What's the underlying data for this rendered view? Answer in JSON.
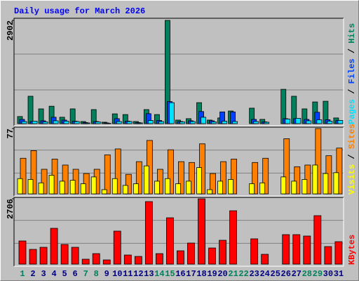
{
  "legend_separator": "/",
  "chart_data": [
    {
      "type": "bar",
      "title": "Daily usage for March 2026",
      "ylim": [
        0,
        2902
      ],
      "yticks": [
        2902
      ],
      "series": [
        {
          "name": "Hits",
          "color": "#00805c",
          "values": [
            200,
            770,
            415,
            490,
            180,
            415,
            60,
            395,
            40,
            275,
            255,
            60,
            395,
            255,
            2902,
            100,
            140,
            590,
            100,
            160,
            355,
            0,
            435,
            120,
            0,
            965,
            770,
            415,
            610,
            630,
            160
          ]
        },
        {
          "name": "Files",
          "color": "#0040ff",
          "values": [
            120,
            60,
            80,
            180,
            100,
            70,
            30,
            60,
            20,
            140,
            70,
            30,
            280,
            90,
            620,
            60,
            80,
            340,
            80,
            330,
            330,
            0,
            120,
            50,
            0,
            140,
            140,
            120,
            320,
            110,
            90
          ]
        },
        {
          "name": "Pages",
          "color": "#00e0ff",
          "values": [
            60,
            70,
            50,
            80,
            70,
            60,
            20,
            50,
            10,
            60,
            60,
            20,
            90,
            60,
            590,
            50,
            60,
            180,
            50,
            70,
            60,
            0,
            60,
            40,
            0,
            130,
            150,
            80,
            110,
            70,
            90
          ]
        }
      ]
    },
    {
      "type": "bar",
      "ylim": [
        0,
        77
      ],
      "yticks": [
        77
      ],
      "series": [
        {
          "name": "Sites",
          "color": "#ff8000",
          "values": [
            42,
            51,
            29,
            41,
            34,
            29,
            24,
            29,
            46,
            53,
            23,
            38,
            63,
            29,
            52,
            38,
            37,
            59,
            24,
            38,
            41,
            0,
            37,
            42,
            0,
            65,
            32,
            34,
            77,
            45,
            54
          ]
        },
        {
          "name": "Visits",
          "color": "#ffff00",
          "values": [
            18,
            17,
            13,
            22,
            15,
            16,
            12,
            20,
            5,
            18,
            10,
            12,
            33,
            15,
            18,
            12,
            15,
            31,
            5,
            15,
            17,
            0,
            12,
            13,
            0,
            20,
            15,
            17,
            34,
            24,
            25
          ]
        }
      ]
    },
    {
      "type": "bar",
      "categories": [
        "1",
        "2",
        "3",
        "4",
        "5",
        "6",
        "7",
        "8",
        "9",
        "10",
        "11",
        "12",
        "13",
        "14",
        "15",
        "16",
        "17",
        "18",
        "19",
        "20",
        "21",
        "22",
        "23",
        "24",
        "25",
        "26",
        "27",
        "28",
        "29",
        "30",
        "31"
      ],
      "category_colors": [
        "#00805c",
        "#000080",
        "#000080",
        "#000080",
        "#000080",
        "#000080",
        "#00805c",
        "#00805c",
        "#000080",
        "#000080",
        "#000080",
        "#000080",
        "#000080",
        "#00805c",
        "#00805c",
        "#000080",
        "#000080",
        "#000080",
        "#000080",
        "#000080",
        "#00805c",
        "#00805c",
        "#000080",
        "#000080",
        "#000080",
        "#000080",
        "#000080",
        "#00805c",
        "#00805c",
        "#000080",
        "#000080"
      ],
      "ylim": [
        0,
        2706
      ],
      "yticks": [
        2706
      ],
      "series": [
        {
          "name": "KBytes",
          "color": "#ff0000",
          "values": [
            960,
            611,
            698,
            1484,
            815,
            698,
            204,
            436,
            175,
            1368,
            378,
            320,
            2590,
            436,
            1920,
            553,
            873,
            2706,
            669,
            989,
            2211,
            0,
            1048,
            407,
            0,
            1222,
            1222,
            1164,
            2008,
            727,
            931
          ]
        }
      ]
    }
  ]
}
